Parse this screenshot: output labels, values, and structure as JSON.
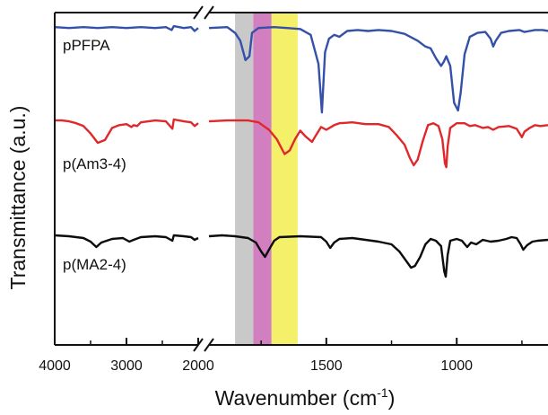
{
  "chart_data": {
    "type": "line",
    "title": "",
    "xlabel": "Wavenumber (cm",
    "xlabel_sup": "-1",
    "xlabel_close": ")",
    "ylabel": "Transmittance (a.u.)",
    "x_axis_reversed": true,
    "x_axis_break": {
      "from": 2000,
      "to": 1950
    },
    "x_segments": [
      {
        "range": [
          4000,
          2000
        ],
        "ticks": [
          4000,
          3000,
          2000
        ]
      },
      {
        "range": [
          1950,
          650
        ],
        "ticks": [
          1500,
          1000
        ]
      }
    ],
    "y_ticks_labeled": false,
    "legend": "none; series names printed next to traces on the left",
    "highlight_bands": [
      {
        "range": [
          1850,
          1780
        ],
        "color": "#c9c9c9"
      },
      {
        "range": [
          1780,
          1710
        ],
        "color": "#d27fc0"
      },
      {
        "range": [
          1710,
          1610
        ],
        "color": "#f5f06a"
      }
    ],
    "series": [
      {
        "name": "pPFPA",
        "color": "#3550a8",
        "points": [
          [
            4000,
            0.99
          ],
          [
            3800,
            0.985
          ],
          [
            3600,
            0.99
          ],
          [
            3400,
            0.985
          ],
          [
            3200,
            0.99
          ],
          [
            3000,
            0.985
          ],
          [
            2800,
            0.99
          ],
          [
            2600,
            0.985
          ],
          [
            2450,
            0.99
          ],
          [
            2370,
            0.975
          ],
          [
            2340,
            0.995
          ],
          [
            2200,
            0.985
          ],
          [
            2100,
            0.99
          ],
          [
            2050,
            0.97
          ],
          [
            2000,
            0.985
          ],
          [
            1950,
            0.985
          ],
          [
            1880,
            0.99
          ],
          [
            1850,
            0.96
          ],
          [
            1830,
            0.92
          ],
          [
            1810,
            0.82
          ],
          [
            1795,
            0.84
          ],
          [
            1785,
            0.96
          ],
          [
            1760,
            0.985
          ],
          [
            1700,
            0.99
          ],
          [
            1650,
            0.985
          ],
          [
            1600,
            0.98
          ],
          [
            1560,
            0.95
          ],
          [
            1530,
            0.8
          ],
          [
            1517,
            0.55
          ],
          [
            1505,
            0.86
          ],
          [
            1490,
            0.93
          ],
          [
            1470,
            0.95
          ],
          [
            1450,
            0.94
          ],
          [
            1420,
            0.97
          ],
          [
            1380,
            0.975
          ],
          [
            1340,
            0.97
          ],
          [
            1300,
            0.975
          ],
          [
            1250,
            0.97
          ],
          [
            1200,
            0.955
          ],
          [
            1150,
            0.92
          ],
          [
            1120,
            0.89
          ],
          [
            1100,
            0.88
          ],
          [
            1080,
            0.83
          ],
          [
            1060,
            0.79
          ],
          [
            1050,
            0.81
          ],
          [
            1040,
            0.84
          ],
          [
            1025,
            0.79
          ],
          [
            1010,
            0.6
          ],
          [
            995,
            0.56
          ],
          [
            985,
            0.65
          ],
          [
            970,
            0.85
          ],
          [
            950,
            0.94
          ],
          [
            920,
            0.96
          ],
          [
            890,
            0.965
          ],
          [
            870,
            0.93
          ],
          [
            860,
            0.89
          ],
          [
            850,
            0.92
          ],
          [
            830,
            0.96
          ],
          [
            800,
            0.97
          ],
          [
            760,
            0.975
          ],
          [
            740,
            0.965
          ],
          [
            720,
            0.97
          ],
          [
            700,
            0.975
          ],
          [
            670,
            0.975
          ],
          [
            650,
            0.97
          ]
        ]
      },
      {
        "name": "p(Am3-4)",
        "color": "#e0282a",
        "points": [
          [
            4000,
            0.99
          ],
          [
            3900,
            0.99
          ],
          [
            3800,
            0.985
          ],
          [
            3700,
            0.975
          ],
          [
            3600,
            0.96
          ],
          [
            3500,
            0.92
          ],
          [
            3400,
            0.87
          ],
          [
            3300,
            0.885
          ],
          [
            3200,
            0.95
          ],
          [
            3100,
            0.965
          ],
          [
            3000,
            0.97
          ],
          [
            2930,
            0.955
          ],
          [
            2900,
            0.965
          ],
          [
            2850,
            0.96
          ],
          [
            2800,
            0.98
          ],
          [
            2600,
            0.99
          ],
          [
            2450,
            0.985
          ],
          [
            2360,
            0.945
          ],
          [
            2340,
            0.995
          ],
          [
            2200,
            0.985
          ],
          [
            2100,
            0.98
          ],
          [
            2050,
            0.96
          ],
          [
            2000,
            0.975
          ],
          [
            1950,
            0.985
          ],
          [
            1880,
            0.99
          ],
          [
            1800,
            0.99
          ],
          [
            1760,
            0.98
          ],
          [
            1720,
            0.94
          ],
          [
            1690,
            0.89
          ],
          [
            1660,
            0.81
          ],
          [
            1640,
            0.83
          ],
          [
            1620,
            0.89
          ],
          [
            1600,
            0.935
          ],
          [
            1580,
            0.905
          ],
          [
            1555,
            0.875
          ],
          [
            1540,
            0.91
          ],
          [
            1520,
            0.955
          ],
          [
            1500,
            0.94
          ],
          [
            1470,
            0.965
          ],
          [
            1450,
            0.975
          ],
          [
            1400,
            0.98
          ],
          [
            1350,
            0.97
          ],
          [
            1300,
            0.97
          ],
          [
            1260,
            0.955
          ],
          [
            1230,
            0.91
          ],
          [
            1200,
            0.86
          ],
          [
            1180,
            0.79
          ],
          [
            1165,
            0.75
          ],
          [
            1150,
            0.78
          ],
          [
            1130,
            0.88
          ],
          [
            1110,
            0.965
          ],
          [
            1090,
            0.975
          ],
          [
            1070,
            0.96
          ],
          [
            1055,
            0.89
          ],
          [
            1045,
            0.76
          ],
          [
            1040,
            0.74
          ],
          [
            1035,
            0.85
          ],
          [
            1025,
            0.95
          ],
          [
            1000,
            0.975
          ],
          [
            970,
            0.975
          ],
          [
            950,
            0.96
          ],
          [
            930,
            0.965
          ],
          [
            900,
            0.95
          ],
          [
            880,
            0.955
          ],
          [
            860,
            0.94
          ],
          [
            840,
            0.955
          ],
          [
            800,
            0.96
          ],
          [
            770,
            0.945
          ],
          [
            750,
            0.9
          ],
          [
            740,
            0.93
          ],
          [
            720,
            0.95
          ],
          [
            700,
            0.965
          ],
          [
            680,
            0.96
          ],
          [
            650,
            0.965
          ]
        ]
      },
      {
        "name": "p(MA2-4)",
        "color": "#0c0c0c",
        "points": [
          [
            4000,
            0.99
          ],
          [
            3800,
            0.985
          ],
          [
            3600,
            0.975
          ],
          [
            3500,
            0.955
          ],
          [
            3420,
            0.925
          ],
          [
            3350,
            0.95
          ],
          [
            3200,
            0.97
          ],
          [
            3050,
            0.975
          ],
          [
            2960,
            0.955
          ],
          [
            2900,
            0.965
          ],
          [
            2800,
            0.98
          ],
          [
            2600,
            0.985
          ],
          [
            2450,
            0.98
          ],
          [
            2360,
            0.96
          ],
          [
            2340,
            0.99
          ],
          [
            2200,
            0.985
          ],
          [
            2100,
            0.98
          ],
          [
            2050,
            0.965
          ],
          [
            2000,
            0.975
          ],
          [
            1950,
            0.985
          ],
          [
            1900,
            0.99
          ],
          [
            1850,
            0.985
          ],
          [
            1800,
            0.975
          ],
          [
            1770,
            0.95
          ],
          [
            1750,
            0.9
          ],
          [
            1735,
            0.87
          ],
          [
            1720,
            0.91
          ],
          [
            1700,
            0.96
          ],
          [
            1680,
            0.98
          ],
          [
            1600,
            0.985
          ],
          [
            1520,
            0.98
          ],
          [
            1500,
            0.955
          ],
          [
            1485,
            0.92
          ],
          [
            1470,
            0.95
          ],
          [
            1450,
            0.97
          ],
          [
            1400,
            0.975
          ],
          [
            1350,
            0.965
          ],
          [
            1300,
            0.955
          ],
          [
            1250,
            0.94
          ],
          [
            1220,
            0.9
          ],
          [
            1190,
            0.84
          ],
          [
            1175,
            0.81
          ],
          [
            1160,
            0.82
          ],
          [
            1140,
            0.87
          ],
          [
            1120,
            0.94
          ],
          [
            1100,
            0.97
          ],
          [
            1080,
            0.96
          ],
          [
            1060,
            0.93
          ],
          [
            1048,
            0.79
          ],
          [
            1042,
            0.76
          ],
          [
            1035,
            0.88
          ],
          [
            1025,
            0.96
          ],
          [
            1000,
            0.97
          ],
          [
            980,
            0.96
          ],
          [
            960,
            0.925
          ],
          [
            945,
            0.95
          ],
          [
            925,
            0.94
          ],
          [
            900,
            0.965
          ],
          [
            870,
            0.955
          ],
          [
            840,
            0.96
          ],
          [
            810,
            0.97
          ],
          [
            790,
            0.98
          ],
          [
            770,
            0.975
          ],
          [
            755,
            0.94
          ],
          [
            745,
            0.91
          ],
          [
            730,
            0.935
          ],
          [
            710,
            0.955
          ],
          [
            690,
            0.96
          ],
          [
            650,
            0.965
          ]
        ]
      }
    ]
  }
}
